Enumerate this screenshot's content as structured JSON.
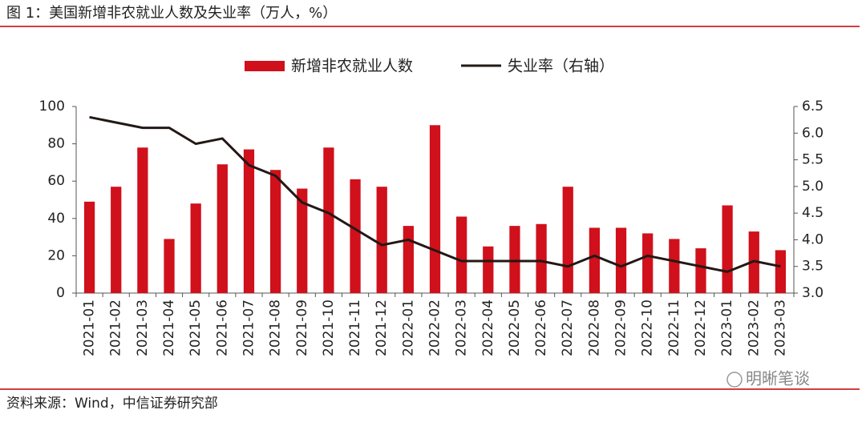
{
  "chart_data": {
    "type": "bar-line",
    "title": "图 1：美国新增非农就业人数及失业率（万人，%）",
    "source": "资料来源：Wind，中信证券研究部",
    "watermark": "明晰笔谈",
    "categories": [
      "2021-01",
      "2021-02",
      "2021-03",
      "2021-04",
      "2021-05",
      "2021-06",
      "2021-07",
      "2021-08",
      "2021-09",
      "2021-10",
      "2021-11",
      "2021-12",
      "2022-01",
      "2022-02",
      "2022-03",
      "2022-04",
      "2022-05",
      "2022-06",
      "2022-07",
      "2022-08",
      "2022-09",
      "2022-10",
      "2022-11",
      "2022-12",
      "2023-01",
      "2023-02",
      "2023-03"
    ],
    "series": [
      {
        "name": "新增非农就业人数",
        "color": "#d0101b",
        "type": "bar",
        "values": [
          49,
          57,
          78,
          29,
          48,
          69,
          77,
          66,
          56,
          78,
          61,
          57,
          36,
          90,
          41,
          25,
          36,
          37,
          57,
          35,
          35,
          32,
          29,
          24,
          47,
          33,
          23
        ]
      },
      {
        "name": "失业率（右轴）",
        "color": "#231815",
        "type": "line",
        "axis": "y2",
        "values": [
          6.3,
          6.2,
          6.1,
          6.1,
          5.8,
          5.9,
          5.4,
          5.2,
          4.7,
          4.5,
          4.2,
          3.9,
          4.0,
          3.8,
          3.6,
          3.6,
          3.6,
          3.6,
          3.5,
          3.7,
          3.5,
          3.7,
          3.6,
          3.5,
          3.4,
          3.6,
          3.5
        ]
      }
    ],
    "ylim": [
      0,
      100
    ],
    "yticks": [
      0,
      20,
      40,
      60,
      80,
      100
    ],
    "y2lim": [
      3,
      6.5
    ],
    "y2ticks": [
      {
        "value": 3,
        "label": "3.0"
      },
      3.5,
      {
        "value": 4,
        "label": "4.0"
      },
      4.5,
      {
        "value": 5,
        "label": "5.0"
      },
      5.5,
      {
        "value": 6,
        "label": "6.0"
      },
      6.5
    ],
    "grid": false,
    "legend": "top"
  }
}
